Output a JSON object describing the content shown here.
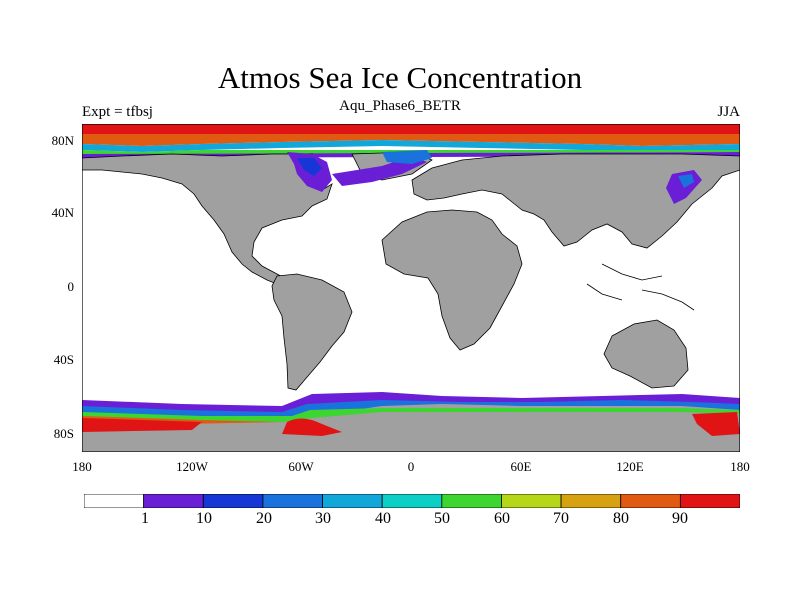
{
  "title": "Atmos Sea Ice Concentration",
  "subtitle": "Aqu_Phase6_BETR",
  "left_label": "Expt = tfbsj",
  "right_label": "JJA",
  "y_ticks": [
    "80N",
    "40N",
    "0",
    "40S",
    "80S"
  ],
  "x_ticks": [
    "180",
    "120W",
    "60W",
    "0",
    "60E",
    "120E",
    "180"
  ],
  "colorbar": {
    "labels": [
      "1",
      "10",
      "20",
      "30",
      "40",
      "50",
      "60",
      "70",
      "80",
      "90"
    ],
    "colors": [
      "#ffffff",
      "#6a1fd6",
      "#1636d6",
      "#1a72dc",
      "#11a7d8",
      "#0dcfc6",
      "#3dd630",
      "#b6d61a",
      "#d6a212",
      "#e15a12",
      "#e01414"
    ]
  },
  "colors": {
    "land": "#a0a0a0",
    "ocean": "#ffffff",
    "coast": "#000000"
  }
}
